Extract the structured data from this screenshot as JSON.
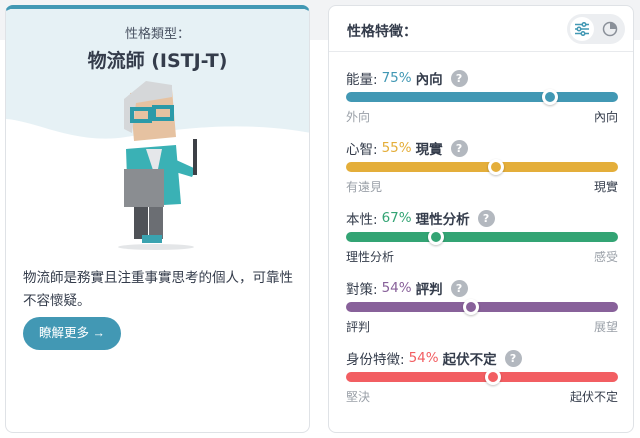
{
  "profile": {
    "kicker": "性格類型：",
    "title": "物流師 (ISTJ-T)",
    "description": "物流師是務實且注重事實思考的個人，可靠性不容懷疑。",
    "more_button": "瞭解更多 →"
  },
  "traits_panel": {
    "title": "性格特徵：",
    "view_toggle": [
      "sliders-icon",
      "pie-chart-icon"
    ],
    "traits": [
      {
        "name": "能量:",
        "percent": "75%",
        "trait": "內向",
        "value": 75,
        "left": "外向",
        "right": "內向",
        "selected": "right",
        "color": "#4298b4"
      },
      {
        "name": "心智:",
        "percent": "55%",
        "trait": "現實",
        "value": 55,
        "left": "有遠見",
        "right": "現實",
        "selected": "right",
        "color": "#e4ae3a"
      },
      {
        "name": "本性:",
        "percent": "67%",
        "trait": "理性分析",
        "value": 67,
        "left": "理性分析",
        "right": "感受",
        "selected": "left",
        "color": "#33a474"
      },
      {
        "name": "對策:",
        "percent": "54%",
        "trait": "評判",
        "value": 54,
        "left": "評判",
        "right": "展望",
        "selected": "left",
        "color": "#88619a"
      },
      {
        "name": "身份特徵:",
        "percent": "54%",
        "trait": "起伏不定",
        "value": 54,
        "left": "堅決",
        "right": "起伏不定",
        "selected": "right",
        "color": "#f25e62"
      }
    ],
    "help_label": "?"
  }
}
